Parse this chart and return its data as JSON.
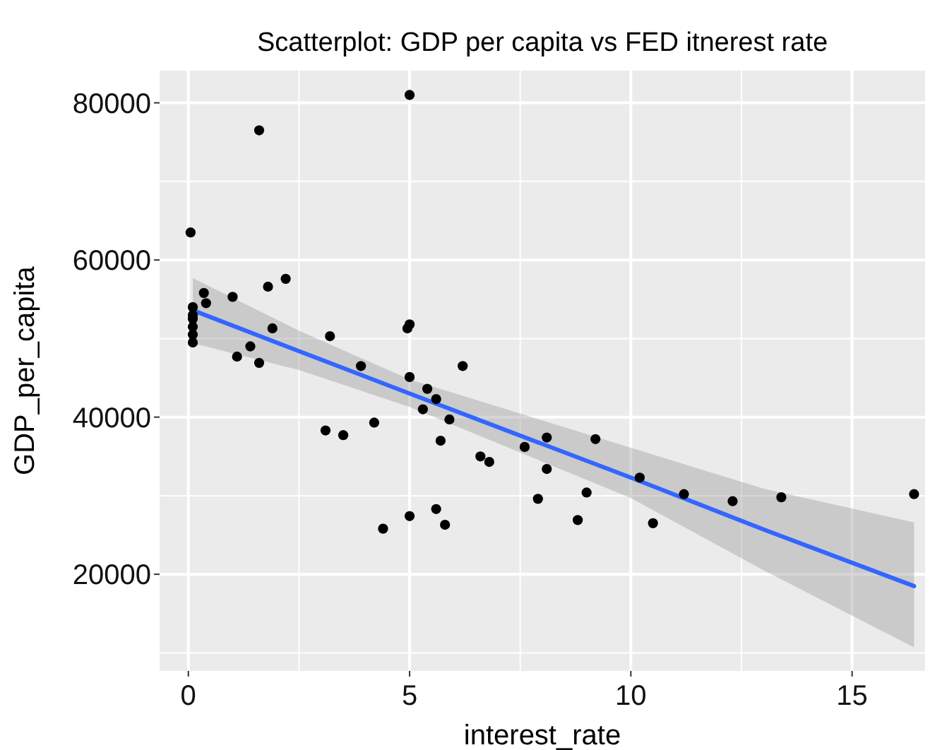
{
  "chart_data": {
    "type": "scatter",
    "title": "Scatterplot: GDP per capita vs FED itnerest rate",
    "xlabel": "interest_rate",
    "ylabel": "GDP_per_capita",
    "xlim": [
      -0.65,
      16.65
    ],
    "ylim": [
      7700,
      84100
    ],
    "xticks": [
      0,
      5,
      10,
      15
    ],
    "yticks": [
      20000,
      40000,
      60000,
      80000
    ],
    "grid": true,
    "series": [
      {
        "color": "#000000",
        "marker": "circle",
        "x": [
          0.05,
          1.6,
          5.0,
          0.1,
          0.1,
          0.1,
          0.1,
          0.1,
          0.1,
          0.35,
          0.4,
          1.0,
          1.1,
          1.4,
          1.6,
          1.8,
          1.9,
          2.2,
          3.1,
          3.2,
          3.5,
          3.9,
          4.2,
          4.4,
          4.95,
          5.0,
          5.0,
          5.0,
          5.3,
          5.4,
          5.6,
          5.6,
          5.7,
          5.8,
          5.9,
          6.2,
          6.6,
          6.8,
          7.6,
          7.9,
          8.1,
          8.1,
          8.8,
          9.0,
          9.2,
          10.2,
          10.5,
          11.2,
          12.3,
          13.4,
          16.4
        ],
        "values": [
          63500,
          76500,
          81000,
          54000,
          53000,
          52500,
          51500,
          50500,
          49500,
          55800,
          54500,
          55300,
          47700,
          49000,
          46900,
          56600,
          51300,
          57600,
          38300,
          50300,
          37700,
          46500,
          39300,
          25800,
          51300,
          51800,
          45100,
          27400,
          41000,
          43600,
          28300,
          42300,
          37000,
          26300,
          39700,
          46500,
          35000,
          34300,
          36200,
          29600,
          37400,
          33400,
          26900,
          30400,
          37200,
          32300,
          26500,
          30200,
          29300,
          29800,
          30200
        ]
      },
      {
        "type": "line",
        "color": "#3366ff",
        "x": [
          0.1,
          2.5,
          5,
          10,
          13,
          16.4
        ],
        "values": [
          53600,
          48400,
          43000,
          32300,
          25700,
          18500
        ],
        "lower": [
          49400,
          46000,
          41300,
          29700,
          20500,
          10700
        ],
        "upper": [
          57700,
          51000,
          44800,
          36100,
          30900,
          26600
        ]
      }
    ]
  }
}
